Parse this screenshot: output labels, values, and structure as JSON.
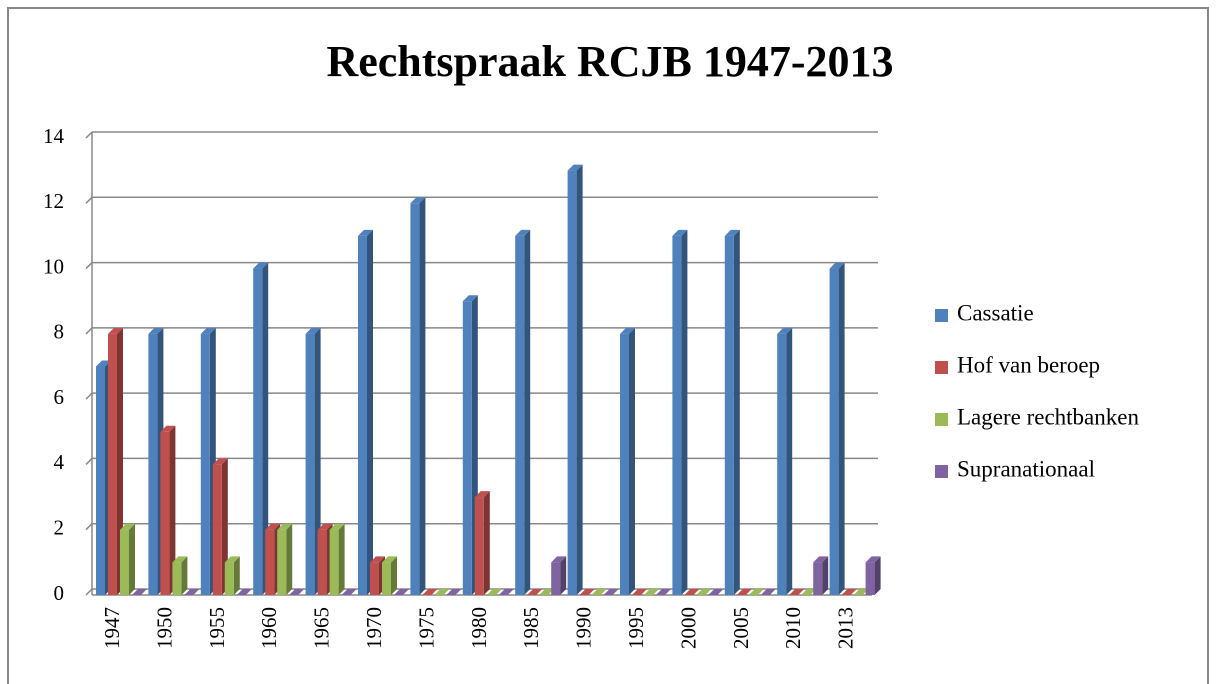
{
  "chart_data": {
    "type": "bar",
    "title": "Rechtspraak RCJB 1947-2013",
    "categories": [
      "1947",
      "1950",
      "1955",
      "1960",
      "1965",
      "1970",
      "1975",
      "1980",
      "1985",
      "1990",
      "1995",
      "2000",
      "2005",
      "2010",
      "2013"
    ],
    "series": [
      {
        "name": "Cassatie",
        "color": "#4f81bd",
        "values": [
          7,
          8,
          8,
          10,
          8,
          11,
          12,
          9,
          11,
          13,
          8,
          11,
          11,
          8,
          10
        ]
      },
      {
        "name": "Hof van beroep",
        "color": "#c0504d",
        "values": [
          8,
          5,
          4,
          2,
          2,
          1,
          0,
          3,
          0,
          0,
          0,
          0,
          0,
          0,
          0
        ]
      },
      {
        "name": "Lagere rechtbanken",
        "color": "#9bbb59",
        "values": [
          2,
          1,
          1,
          2,
          2,
          1,
          0,
          0,
          0,
          0,
          0,
          0,
          0,
          0,
          0
        ]
      },
      {
        "name": "Supranationaal",
        "color": "#8064a2",
        "values": [
          0,
          0,
          0,
          0,
          0,
          0,
          0,
          0,
          1,
          0,
          0,
          0,
          0,
          1,
          1
        ]
      }
    ],
    "ylim": [
      0,
      14
    ],
    "yticks": [
      0,
      2,
      4,
      6,
      8,
      10,
      12,
      14
    ],
    "grid": true,
    "legend": "right"
  }
}
